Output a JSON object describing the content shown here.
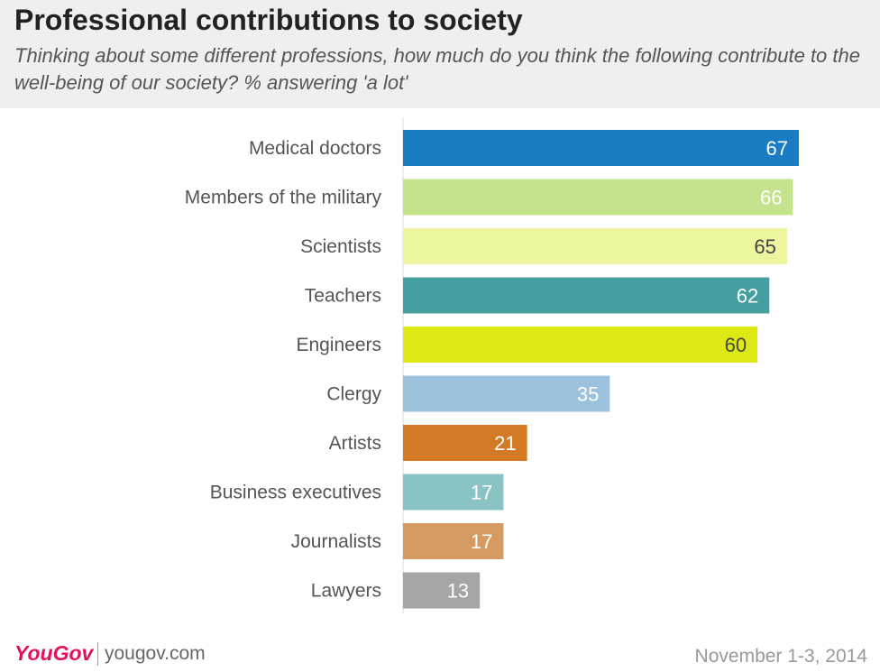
{
  "header": {
    "title": "Professional contributions to society",
    "subtitle": "Thinking about some different professions, how much do you think the following contribute to the well-being of our society? % answering 'a lot'"
  },
  "footer": {
    "logo": "YouGov",
    "url": "yougov.com",
    "date": "November 1-3, 2014"
  },
  "chart_data": {
    "type": "bar",
    "orientation": "horizontal",
    "categories": [
      "Medical doctors",
      "Members of the military",
      "Scientists",
      "Teachers",
      "Engineers",
      "Clergy",
      "Artists",
      "Business executives",
      "Journalists",
      "Lawyers"
    ],
    "values": [
      67,
      66,
      65,
      62,
      60,
      35,
      21,
      17,
      17,
      13
    ],
    "colors": [
      "#1a7dc4",
      "#c5e28d",
      "#eef59f",
      "#459e9f",
      "#dee815",
      "#9bc1dd",
      "#d47a25",
      "#89c3c3",
      "#d49a61",
      "#a5a5a5"
    ],
    "label_colors": [
      "#ffffff",
      "#ffffff",
      "#444444",
      "#ffffff",
      "#444444",
      "#ffffff",
      "#ffffff",
      "#ffffff",
      "#ffffff",
      "#ffffff"
    ],
    "xlim": [
      0,
      67
    ],
    "grid": false,
    "legend": "none"
  }
}
